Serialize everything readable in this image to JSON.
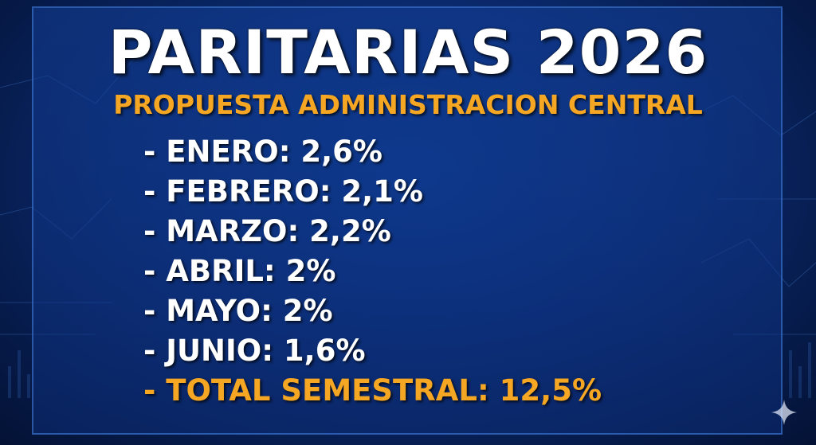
{
  "title": "PARITARIAS 2026",
  "subtitle": "PROPUESTA ADMINISTRACION CENTRAL",
  "items": [
    {
      "text": "- ENERO: 2,6%"
    },
    {
      "text": "- FEBRERO: 2,1%"
    },
    {
      "text": "- MARZO: 2,2%"
    },
    {
      "text": "- ABRIL: 2%"
    },
    {
      "text": "- MAYO: 2%"
    },
    {
      "text": "- JUNIO: 1,6%"
    }
  ],
  "total": {
    "text": "- TOTAL SEMESTRAL: 12,5%"
  },
  "colors": {
    "title": "#ffffff",
    "accent": "#f5a623",
    "background": "#0a2a6e"
  },
  "icons": {
    "corner": "sparkle-icon"
  }
}
